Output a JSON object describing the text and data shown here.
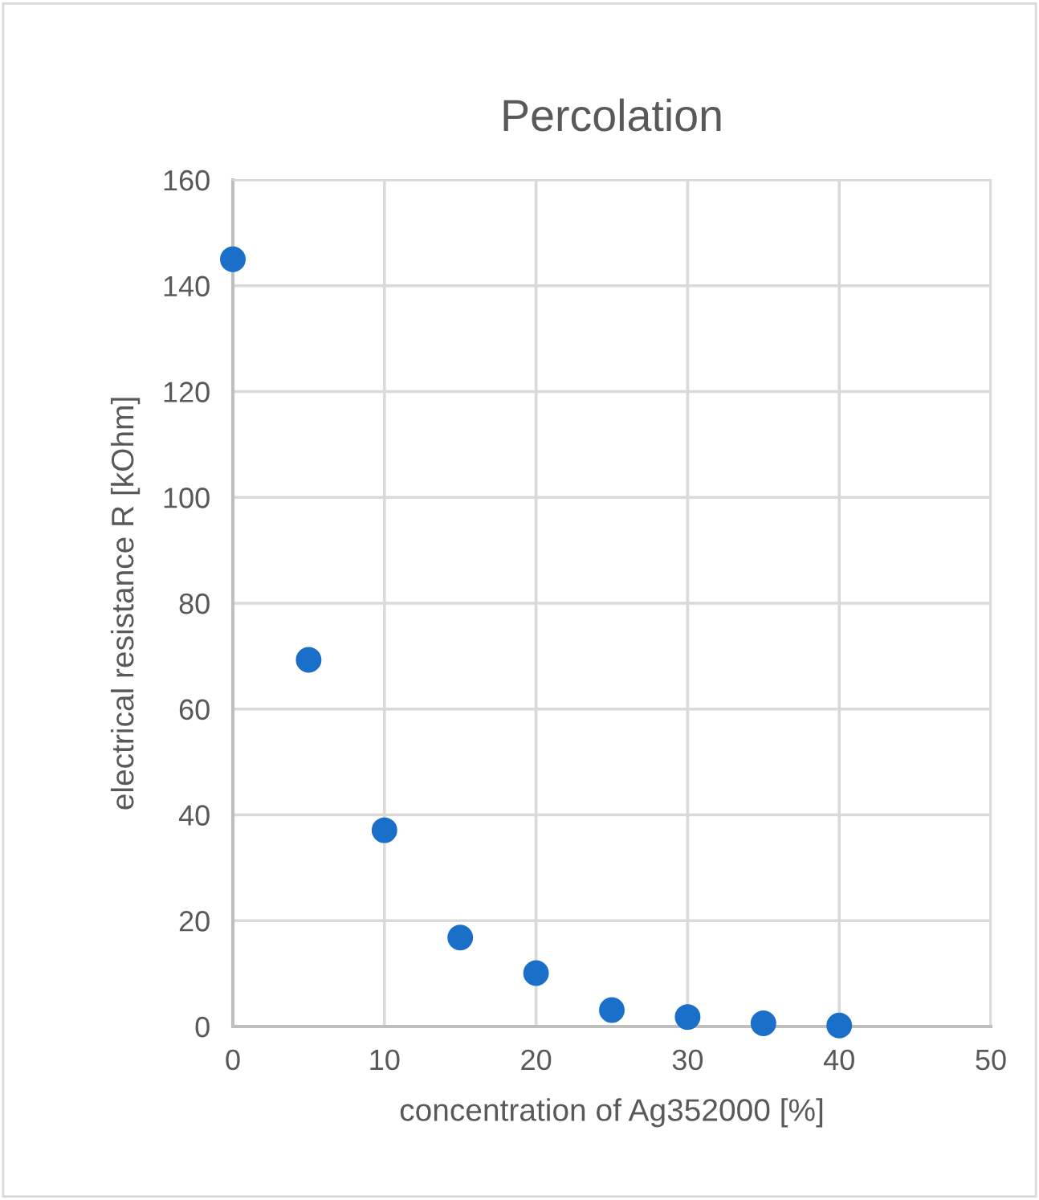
{
  "chart_data": {
    "type": "scatter",
    "title": "Percolation",
    "xlabel": "concentration of Ag352000 [%]",
    "ylabel": "electrical resistance R [kOhm]",
    "x": [
      0,
      5,
      10,
      15,
      20,
      25,
      30,
      35,
      40
    ],
    "series": [
      {
        "color": "#1a6fc9",
        "values": [
          145,
          69.3,
          37.1,
          16.8,
          10.1,
          3.1,
          1.8,
          0.6,
          0.2
        ]
      }
    ],
    "xlim": [
      0,
      50
    ],
    "xticks": [
      0,
      10,
      20,
      30,
      40,
      50
    ],
    "ylim": [
      0,
      160
    ],
    "yticks": [
      0,
      20,
      40,
      60,
      80,
      100,
      120,
      140,
      160
    ],
    "grid": true,
    "marker": "circle"
  }
}
